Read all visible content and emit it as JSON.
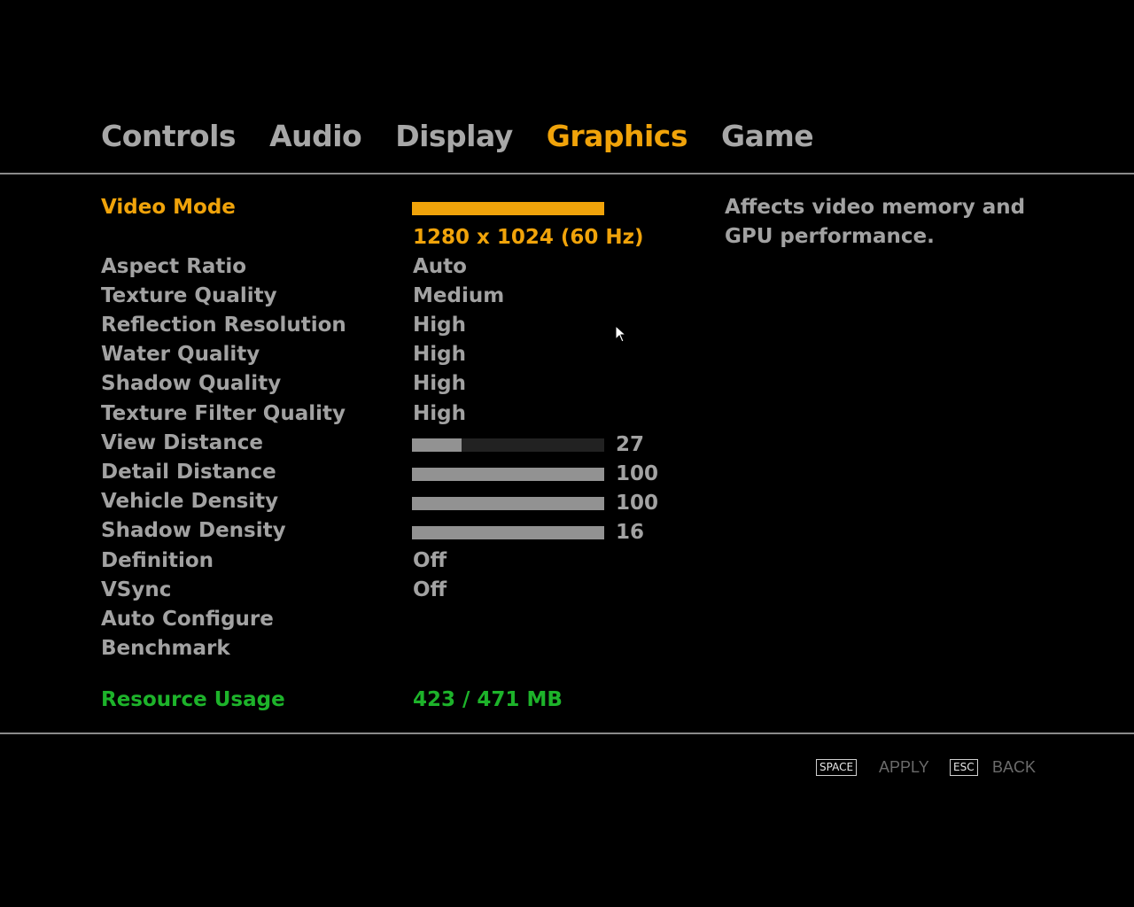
{
  "tabs": [
    {
      "label": "Controls",
      "active": false
    },
    {
      "label": "Audio",
      "active": false
    },
    {
      "label": "Display",
      "active": false
    },
    {
      "label": "Graphics",
      "active": true
    },
    {
      "label": "Game",
      "active": false
    }
  ],
  "settings": {
    "video_mode": {
      "label": "Video Mode",
      "value": "1280 x 1024 (60 Hz)"
    },
    "aspect_ratio": {
      "label": "Aspect Ratio",
      "value": "Auto"
    },
    "texture_quality": {
      "label": "Texture Quality",
      "value": "Medium"
    },
    "reflection_resolution": {
      "label": "Reflection Resolution",
      "value": "High"
    },
    "water_quality": {
      "label": "Water Quality",
      "value": "High"
    },
    "shadow_quality": {
      "label": "Shadow Quality",
      "value": "High"
    },
    "texture_filter_quality": {
      "label": "Texture Filter Quality",
      "value": "High"
    },
    "view_distance": {
      "label": "View Distance",
      "value": "27",
      "fill_percent": 26
    },
    "detail_distance": {
      "label": "Detail Distance",
      "value": "100",
      "fill_percent": 100
    },
    "vehicle_density": {
      "label": "Vehicle Density",
      "value": "100",
      "fill_percent": 100
    },
    "shadow_density": {
      "label": "Shadow Density",
      "value": "16",
      "fill_percent": 100
    },
    "definition": {
      "label": "Definition",
      "value": "Off"
    },
    "vsync": {
      "label": "VSync",
      "value": "Off"
    },
    "auto_configure": {
      "label": "Auto Configure"
    },
    "benchmark": {
      "label": "Benchmark"
    }
  },
  "resource_usage": {
    "label": "Resource Usage",
    "value": "423 / 471 MB"
  },
  "description": "Affects video memory and GPU performance.",
  "footer": {
    "apply_key": "SPACE",
    "apply_label": "APPLY",
    "back_key": "ESC",
    "back_label": "BACK"
  },
  "colors": {
    "accent": "#f0a30a",
    "text": "#a2a2a2",
    "resource": "#1db32a",
    "background": "#000000"
  }
}
